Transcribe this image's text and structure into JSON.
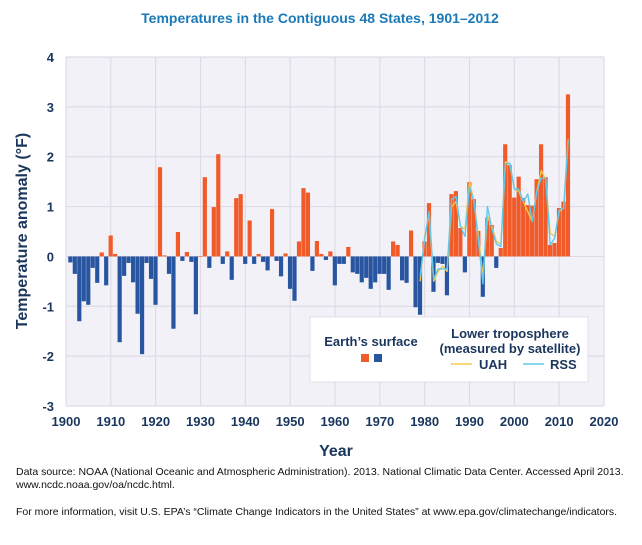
{
  "chart_data": {
    "type": "bar",
    "title": "Temperatures in the Contiguous 48 States, 1901–2012",
    "xlabel": "Year",
    "ylabel": "Temperature anomaly (°F)",
    "xlim": [
      1900,
      2020
    ],
    "ylim": [
      -3,
      4
    ],
    "xticks": [
      "1900",
      "1910",
      "1920",
      "1930",
      "1940",
      "1950",
      "1960",
      "1970",
      "1980",
      "1990",
      "2000",
      "2010",
      "2020"
    ],
    "yticks": [
      "4",
      "3",
      "2",
      "1",
      "0",
      "-1",
      "-2",
      "-3"
    ],
    "grid": true,
    "colors": {
      "positive": "#f15a29",
      "negative": "#2855a0",
      "UAH": "#f2c94c",
      "RSS": "#5ec8ea",
      "background": "#f3f1f8",
      "grid": "#dddbe6",
      "title": "#1a7ab8"
    },
    "legend": {
      "placement": "bottom-right",
      "surface_label": "Earth’s surface",
      "satellite_label_line1": "Lower troposphere",
      "satellite_label_line2": "(measured by satellite)",
      "uah_label": "UAH",
      "rss_label": "RSS"
    },
    "surface": {
      "start_year": 1901,
      "values": [
        -0.12,
        -0.35,
        -1.3,
        -0.9,
        -0.97,
        -0.23,
        -0.53,
        0.08,
        -0.58,
        0.42,
        0.05,
        -1.72,
        -0.39,
        -0.13,
        -0.52,
        -1.15,
        -1.96,
        -0.13,
        -0.45,
        -0.97,
        1.79,
        0.02,
        -0.35,
        -1.45,
        0.49,
        -0.09,
        0.09,
        -0.11,
        -1.16,
        0.0,
        1.59,
        -0.23,
        0.99,
        2.05,
        -0.15,
        0.1,
        -0.47,
        1.17,
        1.25,
        -0.15,
        0.72,
        -0.15,
        0.05,
        -0.11,
        -0.28,
        0.95,
        -0.09,
        -0.4,
        0.06,
        -0.65,
        -0.89,
        0.3,
        1.37,
        1.28,
        -0.29,
        0.31,
        0.05,
        -0.07,
        0.1,
        -0.58,
        -0.15,
        -0.15,
        0.19,
        -0.32,
        -0.35,
        -0.52,
        -0.43,
        -0.65,
        -0.52,
        -0.35,
        -0.35,
        -0.67,
        0.3,
        0.23,
        -0.48,
        -0.53,
        0.52,
        -1.02,
        -1.17,
        0.3,
        1.07,
        -0.71,
        -0.13,
        -0.15,
        -0.78,
        1.25,
        1.31,
        0.57,
        -0.32,
        1.49,
        1.15,
        0.51,
        -0.81,
        0.78,
        0.63,
        -0.23,
        0.17,
        2.25,
        1.83,
        1.18,
        1.6,
        1.17,
        1.03,
        1.02,
        1.55,
        2.25,
        1.59,
        0.23,
        0.27,
        0.97,
        1.1,
        3.25
      ]
    },
    "series": [
      {
        "name": "UAH",
        "start_year": 1979,
        "values": [
          -0.5,
          0.4,
          0.85,
          -0.5,
          -0.3,
          -0.2,
          -0.3,
          1.0,
          1.1,
          0.6,
          0.55,
          1.5,
          1.1,
          0.4,
          -0.4,
          0.8,
          0.6,
          0.3,
          0.25,
          1.9,
          1.85,
          1.35,
          1.3,
          1.1,
          0.9,
          0.7,
          1.3,
          1.72,
          1.55,
          0.47,
          0.4,
          0.9,
          0.97,
          2.35
        ]
      },
      {
        "name": "RSS",
        "start_year": 1979,
        "values": [
          -0.4,
          0.35,
          0.9,
          -0.45,
          -0.25,
          -0.25,
          -0.25,
          1.15,
          1.2,
          0.6,
          0.4,
          1.4,
          1.1,
          0.3,
          -0.55,
          1.0,
          0.55,
          0.25,
          0.2,
          1.85,
          1.87,
          1.35,
          1.35,
          1.1,
          1.25,
          0.7,
          1.3,
          1.57,
          1.57,
          0.23,
          0.37,
          0.93,
          0.97,
          2.33
        ]
      }
    ]
  },
  "footer": {
    "source": "Data source: NOAA (National Oceanic and Atmospheric Administration). 2013. National Climatic Data Center. Accessed April 2013. www.ncdc.noaa.gov/oa/ncdc.html.",
    "more_info": "For more information, visit U.S. EPA’s “Climate Change Indicators in the United States” at www.epa.gov/climatechange/indicators."
  }
}
